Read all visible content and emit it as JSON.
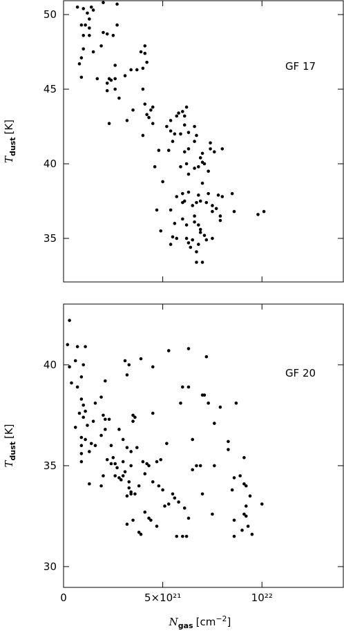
{
  "chart_data": [
    {
      "type": "scatter",
      "annotation": "GF 17",
      "ylabel": {
        "symbol": "T",
        "subscript": "dust",
        "unit": "[K]"
      },
      "color": "#000000",
      "x": [
        7e+20,
        1e+21,
        1.4e+21,
        1.5e+21,
        1.2e+21,
        1.3e+21,
        1.1e+21,
        9e+20,
        1.3e+21,
        2.7e+21,
        1e+21,
        1.3e+21,
        2.2e+21,
        2.5e+21,
        2e+21,
        1.9e+21,
        1e+21,
        1.5e+21,
        9e+20,
        8e+20,
        2.6e+21,
        2e+21,
        2.7e+21,
        9e+20,
        1.7e+21,
        2.6e+21,
        2.4e+21,
        2.3e+21,
        2.2e+21,
        2.2e+21,
        2.6e+21,
        2.8e+21,
        3.1e+21,
        3.4e+21,
        3.7e+21,
        4e+21,
        3.9e+21,
        4.1e+21,
        4.1e+21,
        4.2e+21,
        3.5e+21,
        3.2e+21,
        2.3e+21,
        4e+21,
        4.1e+21,
        4.5e+21,
        4.4e+21,
        4.2e+21,
        4.3e+21,
        4.5e+21,
        4e+21,
        5.2e+21,
        5.4e+21,
        5.4e+21,
        5.5e+21,
        5.7e+21,
        5.8e+21,
        6e+21,
        6.1e+21,
        6.2e+21,
        6.1e+21,
        6.3e+21,
        5.6e+21,
        5.9e+21,
        6.6e+21,
        6.7e+21,
        6.6e+21,
        6.3e+21,
        6.1e+21,
        5.3e+21,
        4.8e+21,
        4.6e+21,
        5e+21,
        5.9e+21,
        6.2e+21,
        6.3e+21,
        6.6e+21,
        6.8e+21,
        7e+21,
        6.9e+21,
        7.1e+21,
        7.3e+21,
        7.4e+21,
        7.4e+21,
        7e+21,
        8e+21,
        7.6e+21,
        7e+21,
        6.8e+21,
        6.3e+21,
        6e+21,
        5.7e+21,
        6.1e+21,
        6e+21,
        6.5e+21,
        6.7e+21,
        6.9e+21,
        7.2e+21,
        7.3e+21,
        7.5e+21,
        7.8e+21,
        7.7e+21,
        7.5e+21,
        7.9e+21,
        7.9e+21,
        8e+21,
        8.5e+21,
        8.6e+21,
        9.8e+21,
        1.01e+22,
        5.4e+21,
        4.7e+21,
        5.6e+21,
        6e+21,
        6.2e+21,
        6.6e+21,
        6.8e+21,
        6.9e+21,
        7.1e+21,
        6.9e+21,
        7.2e+21,
        7.5e+21,
        4.9e+21,
        5.5e+21,
        5.7e+21,
        5.4e+21,
        6.2e+21,
        6.3e+21,
        6.4e+21,
        6.5e+21,
        6.8e+21,
        6.7e+21,
        6.7e+21,
        7e+21,
        6.6e+21
      ],
      "y": [
        50.5,
        50.4,
        50.5,
        50.3,
        50.1,
        49.7,
        49.3,
        49.3,
        49.1,
        49.3,
        48.6,
        48.6,
        48.7,
        48.6,
        48.8,
        47.9,
        47.7,
        47.5,
        47.1,
        46.7,
        46.6,
        50.8,
        50.7,
        45.8,
        45.7,
        45.7,
        45.6,
        45.7,
        45.4,
        44.9,
        45.0,
        44.4,
        45.9,
        46.3,
        46.3,
        46.4,
        47.5,
        47.9,
        47.4,
        46.8,
        43.6,
        42.9,
        42.7,
        45.0,
        44.0,
        43.8,
        43.6,
        43.3,
        43.1,
        42.7,
        41.9,
        42.5,
        42.9,
        42.2,
        41.5,
        43.2,
        43.4,
        43.5,
        43.2,
        43.8,
        42.6,
        42.1,
        42.0,
        42.0,
        42.5,
        41.9,
        41.5,
        41.0,
        40.8,
        40.9,
        40.9,
        39.8,
        38.8,
        39.8,
        40.0,
        39.3,
        39.7,
        39.8,
        40.1,
        40.4,
        40.0,
        39.5,
        41.0,
        41.4,
        40.7,
        41.0,
        40.8,
        38.7,
        37.9,
        38.1,
        38.0,
        37.8,
        37.5,
        37.4,
        37.2,
        37.4,
        37.5,
        37.4,
        38.0,
        37.2,
        37.9,
        37.0,
        36.8,
        36.5,
        36.2,
        37.8,
        38.0,
        36.8,
        36.6,
        36.8,
        36.9,
        36.9,
        36.0,
        36.3,
        35.9,
        36.1,
        35.9,
        35.6,
        35.2,
        35.4,
        34.9,
        35.0,
        35.5,
        35.1,
        35.0,
        34.6,
        35.0,
        34.7,
        34.4,
        34.9,
        34.6,
        34.1,
        33.4,
        33.4,
        36.5
      ],
      "xlim": [
        0,
        1.41e+22
      ],
      "ylim": [
        32.08,
        50.93
      ],
      "yticks": [
        35,
        40,
        45,
        50
      ]
    },
    {
      "type": "scatter",
      "annotation": "GF 20",
      "ylabel": {
        "symbol": "T",
        "subscript": "dust",
        "unit": "[K]"
      },
      "xlabel": {
        "symbol": "N",
        "subscript": "gas",
        "unit": "[cm",
        "exponent": "−2",
        "close": "]"
      },
      "color": "#000000",
      "x": [
        3e+20,
        2e+20,
        7e+20,
        1.1e+21,
        6e+20,
        3e+20,
        1e+21,
        9e+20,
        4e+20,
        7e+20,
        2.1e+21,
        3.1e+21,
        3.3e+21,
        3.2e+21,
        3.9e+21,
        4.5e+21,
        5.3e+21,
        6.3e+21,
        7.2e+21,
        9e+20,
        1e+21,
        1.1e+21,
        8e+20,
        1e+21,
        1.5e+21,
        1.9e+21,
        1.6e+21,
        2.3e+21,
        2e+21,
        2.1e+21,
        2.1e+21,
        1.9e+21,
        1.2e+21,
        6e+20,
        9e+20,
        1.1e+21,
        9e+20,
        1.4e+21,
        1.6e+21,
        1.3e+21,
        9e+20,
        9e+20,
        2.4e+21,
        2.8e+21,
        3e+21,
        3.2e+21,
        3.4e+21,
        2.5e+21,
        2.2e+21,
        2.4e+21,
        2.6e+21,
        2.7e+21,
        2.6e+21,
        2.8e+21,
        2.9e+21,
        3e+21,
        3.1e+21,
        3e+21,
        3.4e+21,
        3.3e+21,
        2e+21,
        1.3e+21,
        1.9e+21,
        3.5e+21,
        3.6e+21,
        3.5e+21,
        3.7e+21,
        3.3e+21,
        3.4e+21,
        3.2e+21,
        3.6e+21,
        3.2e+21,
        3.5e+21,
        3.8e+21,
        3.9e+21,
        4.1e+21,
        4.3e+21,
        4.4e+21,
        4.7e+21,
        3.8e+21,
        4e+21,
        4.1e+21,
        4.2e+21,
        4.3e+21,
        4.5e+21,
        4.7e+21,
        4.5e+21,
        4.8e+21,
        4.9e+21,
        5.2e+21,
        5e+21,
        5.1e+21,
        5.3e+21,
        5.5e+21,
        5.6e+21,
        5.7e+21,
        5.8e+21,
        6e+21,
        6.2e+21,
        6e+21,
        5.9e+21,
        6.3e+21,
        6.5e+21,
        6.5e+21,
        6.1e+21,
        6.3e+21,
        7e+21,
        7.1e+21,
        7.3e+21,
        7.6e+21,
        7.9e+21,
        6.9e+21,
        7.6e+21,
        7e+21,
        7.5e+21,
        8.3e+21,
        8.3e+21,
        8.7e+21,
        8.5e+21,
        8.6e+21,
        8.9e+21,
        9.1e+21,
        9.1e+21,
        9.2e+21,
        9.2e+21,
        9.1e+21,
        9.2e+21,
        8.6e+21,
        9.3e+21,
        9.4e+21,
        9.5e+21,
        9e+21,
        8.6e+21,
        1e+22,
        6.7e+21,
        3.4e+21
      ],
      "y": [
        42.2,
        41.0,
        40.9,
        40.9,
        40.2,
        39.9,
        40.0,
        39.4,
        39.1,
        38.9,
        39.2,
        40.2,
        40.0,
        39.5,
        40.3,
        39.9,
        40.7,
        40.8,
        40.4,
        38.3,
        38.0,
        37.7,
        37.6,
        37.4,
        37.2,
        38.4,
        38.1,
        37.3,
        37.5,
        37.3,
        36.8,
        36.5,
        37.0,
        36.9,
        36.4,
        36.3,
        36.0,
        36.1,
        36.0,
        35.7,
        35.6,
        35.2,
        36.0,
        36.8,
        36.3,
        35.9,
        35.7,
        35.4,
        35.3,
        35.1,
        35.1,
        34.9,
        34.5,
        34.4,
        34.3,
        34.5,
        34.7,
        35.2,
        35.0,
        34.2,
        34.5,
        34.1,
        34.0,
        37.5,
        37.4,
        37.2,
        35.9,
        33.9,
        33.6,
        33.5,
        33.6,
        32.1,
        32.3,
        31.7,
        31.6,
        32.7,
        32.4,
        32.3,
        32.0,
        34.0,
        35.2,
        34.6,
        35.1,
        35.0,
        37.6,
        35.2,
        34.2,
        34.0,
        35.3,
        36.1,
        33.8,
        33.0,
        33.1,
        33.6,
        33.4,
        31.5,
        33.2,
        31.5,
        31.5,
        38.9,
        38.1,
        38.9,
        36.3,
        34.8,
        32.9,
        32.4,
        38.5,
        38.5,
        38.1,
        37.1,
        37.9,
        35.0,
        35.0,
        33.6,
        32.6,
        36.2,
        35.8,
        38.1,
        33.8,
        34.4,
        34.5,
        35.4,
        34.1,
        34.0,
        33.0,
        32.6,
        32.5,
        32.3,
        32.0,
        33.5,
        31.6,
        31.8,
        31.5,
        33.1,
        35.0,
        33.7
      ],
      "xlim": [
        0,
        1.41e+22
      ],
      "ylim": [
        28.97,
        43.01
      ],
      "yticks": [
        30,
        35,
        40
      ],
      "xticks": [
        0,
        {
          "value": 5e+21,
          "label": "5×10²¹"
        },
        {
          "value": 1e+22,
          "label": "10²²"
        }
      ]
    }
  ]
}
